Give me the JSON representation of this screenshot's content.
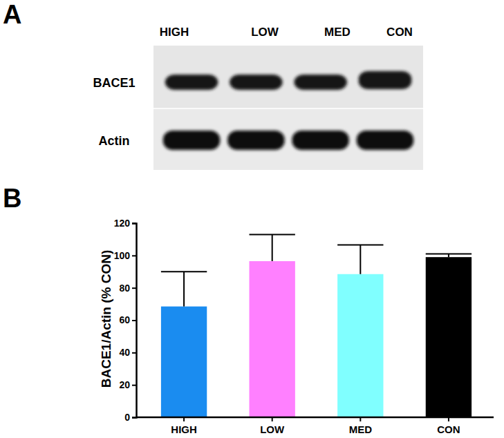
{
  "panel_labels": [
    "A",
    "B"
  ],
  "blot": {
    "lanes": [
      "HIGH",
      "LOW",
      "MED",
      "CON"
    ],
    "rows": [
      "BACE1",
      "Actin"
    ]
  },
  "chart_data": {
    "type": "bar",
    "y_label": "BACE1/Actin (% CON)",
    "categories": [
      "HIGH",
      "LOW",
      "MED",
      "CON"
    ],
    "values": [
      68.5,
      96.5,
      88.5,
      99
    ],
    "errors": [
      21.5,
      16.5,
      18,
      2
    ],
    "colors": [
      "#1a8cf0",
      "#ff80ff",
      "#80ffff",
      "#000000"
    ],
    "ylim": [
      0,
      120
    ],
    "yticks": [
      0,
      20,
      40,
      60,
      80,
      100,
      120
    ],
    "grid": false
  }
}
